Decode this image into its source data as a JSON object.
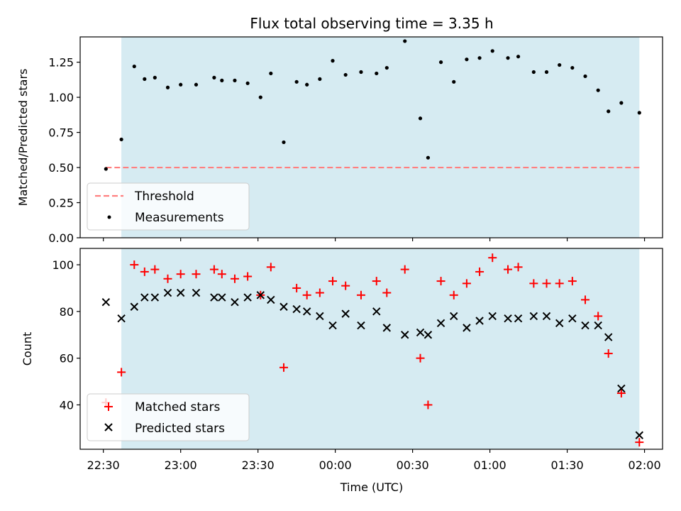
{
  "chart_data": [
    {
      "type": "scatter",
      "title": "Flux total observing time = 3.35 h",
      "xlabel": "",
      "ylabel": "Matched/Predicted stars",
      "ylim": [
        0,
        1.43
      ],
      "yticks": [
        "0.00",
        "0.25",
        "0.50",
        "0.75",
        "1.00",
        "1.25"
      ],
      "ytick_values": [
        0,
        0.25,
        0.5,
        0.75,
        1.0,
        1.25
      ],
      "grid": false,
      "legend_position": "lower-left",
      "threshold": {
        "name": "Threshold",
        "value": 0.5,
        "x_start": "22:31",
        "x_end": "01:58",
        "color": "#ff7f7f"
      },
      "series": [
        {
          "name": "Measurements",
          "marker": "dot",
          "color": "#000000",
          "points": [
            [
              "22:31",
              0.49
            ],
            [
              "22:37",
              0.7
            ],
            [
              "22:42",
              1.22
            ],
            [
              "22:46",
              1.13
            ],
            [
              "22:50",
              1.14
            ],
            [
              "22:55",
              1.07
            ],
            [
              "23:00",
              1.09
            ],
            [
              "23:06",
              1.09
            ],
            [
              "23:13",
              1.14
            ],
            [
              "23:16",
              1.12
            ],
            [
              "23:21",
              1.12
            ],
            [
              "23:26",
              1.1
            ],
            [
              "23:31",
              1.0
            ],
            [
              "23:35",
              1.17
            ],
            [
              "23:40",
              0.68
            ],
            [
              "23:45",
              1.11
            ],
            [
              "23:49",
              1.09
            ],
            [
              "23:54",
              1.13
            ],
            [
              "23:59",
              1.26
            ],
            [
              "00:04",
              1.16
            ],
            [
              "00:10",
              1.18
            ],
            [
              "00:16",
              1.17
            ],
            [
              "00:20",
              1.21
            ],
            [
              "00:27",
              1.4
            ],
            [
              "00:33",
              0.85
            ],
            [
              "00:36",
              0.57
            ],
            [
              "00:41",
              1.25
            ],
            [
              "00:46",
              1.11
            ],
            [
              "00:51",
              1.27
            ],
            [
              "00:56",
              1.28
            ],
            [
              "01:01",
              1.33
            ],
            [
              "01:07",
              1.28
            ],
            [
              "01:11",
              1.29
            ],
            [
              "01:17",
              1.18
            ],
            [
              "01:22",
              1.18
            ],
            [
              "01:27",
              1.23
            ],
            [
              "01:32",
              1.21
            ],
            [
              "01:37",
              1.15
            ],
            [
              "01:42",
              1.05
            ],
            [
              "01:46",
              0.9
            ],
            [
              "01:51",
              0.96
            ],
            [
              "01:58",
              0.89
            ]
          ]
        }
      ]
    },
    {
      "type": "scatter",
      "title": "",
      "xlabel": "Time (UTC)",
      "ylabel": "Count",
      "ylim": [
        21,
        107
      ],
      "yticks": [
        "40",
        "60",
        "80",
        "100"
      ],
      "ytick_values": [
        40,
        60,
        80,
        100
      ],
      "xticks": [
        "22:30",
        "23:00",
        "23:30",
        "00:00",
        "00:30",
        "01:00",
        "01:30",
        "02:00"
      ],
      "grid": false,
      "legend_position": "lower-left",
      "series": [
        {
          "name": "Matched stars",
          "marker": "plus",
          "color": "#ff0000",
          "points": [
            [
              "22:31",
              41
            ],
            [
              "22:37",
              54
            ],
            [
              "22:42",
              100
            ],
            [
              "22:46",
              97
            ],
            [
              "22:50",
              98
            ],
            [
              "22:55",
              94
            ],
            [
              "23:00",
              96
            ],
            [
              "23:06",
              96
            ],
            [
              "23:13",
              98
            ],
            [
              "23:16",
              96
            ],
            [
              "23:21",
              94
            ],
            [
              "23:26",
              95
            ],
            [
              "23:31",
              87
            ],
            [
              "23:35",
              99
            ],
            [
              "23:40",
              56
            ],
            [
              "23:45",
              90
            ],
            [
              "23:49",
              87
            ],
            [
              "23:54",
              88
            ],
            [
              "23:59",
              93
            ],
            [
              "00:04",
              91
            ],
            [
              "00:10",
              87
            ],
            [
              "00:16",
              93
            ],
            [
              "00:20",
              88
            ],
            [
              "00:27",
              98
            ],
            [
              "00:33",
              60
            ],
            [
              "00:36",
              40
            ],
            [
              "00:41",
              93
            ],
            [
              "00:46",
              87
            ],
            [
              "00:51",
              92
            ],
            [
              "00:56",
              97
            ],
            [
              "01:01",
              103
            ],
            [
              "01:07",
              98
            ],
            [
              "01:11",
              99
            ],
            [
              "01:17",
              92
            ],
            [
              "01:22",
              92
            ],
            [
              "01:27",
              92
            ],
            [
              "01:32",
              93
            ],
            [
              "01:37",
              85
            ],
            [
              "01:42",
              78
            ],
            [
              "01:46",
              62
            ],
            [
              "01:51",
              45
            ],
            [
              "01:58",
              24
            ]
          ]
        },
        {
          "name": "Predicted stars",
          "marker": "x",
          "color": "#000000",
          "points": [
            [
              "22:31",
              84
            ],
            [
              "22:37",
              77
            ],
            [
              "22:42",
              82
            ],
            [
              "22:46",
              86
            ],
            [
              "22:50",
              86
            ],
            [
              "22:55",
              88
            ],
            [
              "23:00",
              88
            ],
            [
              "23:06",
              88
            ],
            [
              "23:13",
              86
            ],
            [
              "23:16",
              86
            ],
            [
              "23:21",
              84
            ],
            [
              "23:26",
              86
            ],
            [
              "23:31",
              87
            ],
            [
              "23:35",
              85
            ],
            [
              "23:40",
              82
            ],
            [
              "23:45",
              81
            ],
            [
              "23:49",
              80
            ],
            [
              "23:54",
              78
            ],
            [
              "23:59",
              74
            ],
            [
              "00:04",
              79
            ],
            [
              "00:10",
              74
            ],
            [
              "00:16",
              80
            ],
            [
              "00:20",
              73
            ],
            [
              "00:27",
              70
            ],
            [
              "00:33",
              71
            ],
            [
              "00:36",
              70
            ],
            [
              "00:41",
              75
            ],
            [
              "00:46",
              78
            ],
            [
              "00:51",
              73
            ],
            [
              "00:56",
              76
            ],
            [
              "01:01",
              78
            ],
            [
              "01:07",
              77
            ],
            [
              "01:11",
              77
            ],
            [
              "01:17",
              78
            ],
            [
              "01:22",
              78
            ],
            [
              "01:27",
              75
            ],
            [
              "01:32",
              77
            ],
            [
              "01:37",
              74
            ],
            [
              "01:42",
              74
            ],
            [
              "01:46",
              69
            ],
            [
              "01:51",
              47
            ],
            [
              "01:58",
              27
            ]
          ]
        }
      ]
    }
  ],
  "shared_x": {
    "range": [
      "22:21",
      "02:07"
    ],
    "observing_span": [
      "22:37",
      "01:58"
    ]
  },
  "colors": {
    "observing_shade": "#add8e6",
    "threshold_line": "#ff7f7f",
    "matched": "#ff0000",
    "predicted": "#000000",
    "measurement": "#000000"
  }
}
